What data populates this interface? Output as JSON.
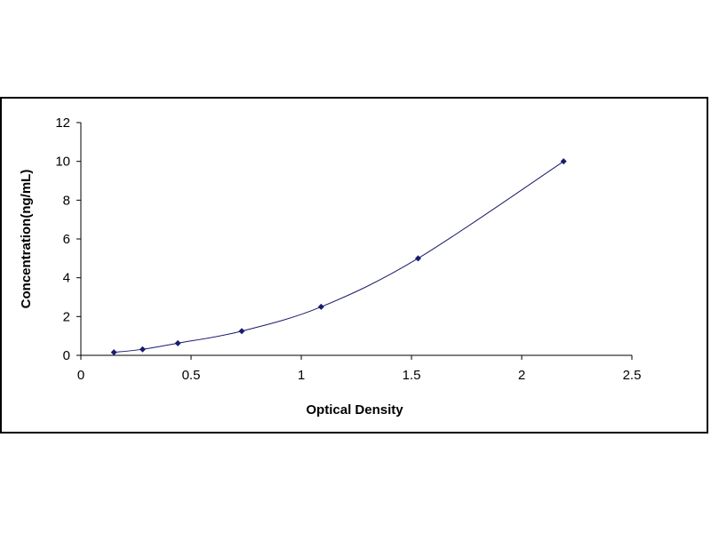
{
  "chart_data": {
    "type": "scatter",
    "title": "",
    "xlabel": "Optical Density",
    "ylabel": "Concentration(ng/mL)",
    "xlim": [
      0,
      2.5
    ],
    "ylim": [
      0,
      12
    ],
    "x_ticks": [
      "0",
      "0.5",
      "1",
      "1.5",
      "2",
      "2.5"
    ],
    "y_ticks": [
      "0",
      "2",
      "4",
      "6",
      "8",
      "10",
      "12"
    ],
    "grid": false,
    "legend": "none",
    "fit_line": "smooth curve through points",
    "series": [
      {
        "x": [
          0.15,
          0.28,
          0.44,
          0.73,
          1.09,
          1.53,
          2.19
        ],
        "y": [
          0.156,
          0.312,
          0.625,
          1.25,
          2.5,
          5,
          10
        ]
      }
    ],
    "colors": {
      "marker": "#1a1a6e",
      "line": "#1a1a6e",
      "axis": "#000000"
    }
  }
}
